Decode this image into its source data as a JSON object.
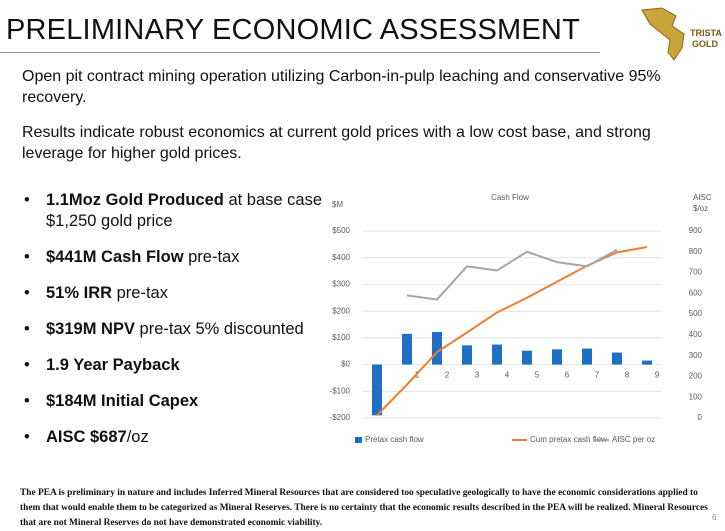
{
  "header": {
    "title": "PRELIMINARY ECONOMIC ASSESSMENT",
    "logo": [
      "TRISTAR",
      "GOLD"
    ]
  },
  "paragraphs": [
    "Open pit contract mining operation utilizing Carbon-in-pulp leaching and conservative 95% recovery.",
    "Results indicate robust economics at current gold prices with a low cost base, and strong leverage for higher gold prices."
  ],
  "bullets": [
    [
      {
        "bold": "1.1Moz Gold Produced"
      },
      {
        "text": " at base case $1,250 gold price"
      }
    ],
    [
      {
        "bold": "$441M Cash Flow"
      },
      {
        "text": " pre-tax"
      }
    ],
    [
      {
        "bold": "51% IRR"
      },
      {
        "text": " pre-tax"
      }
    ],
    [
      {
        "bold": "$319M NPV"
      },
      {
        "text": " pre-tax 5% discounted"
      }
    ],
    [
      {
        "bold": "1.9 Year Payback"
      }
    ],
    [
      {
        "bold": "$184M Initial Capex"
      }
    ],
    [
      {
        "bold": "AISC $687"
      },
      {
        "text": "/oz"
      }
    ]
  ],
  "chart_data": {
    "type": "bar",
    "title": "Cash Flow",
    "y_label": "$M",
    "y2_label": [
      "AISC",
      "$/oz"
    ],
    "categories": [
      null,
      "1",
      "2",
      "3",
      "4",
      "5",
      "6",
      "7",
      "8",
      "9"
    ],
    "series": [
      {
        "name": "Pretax cash flow",
        "type": "bar",
        "color": "#1f6fc5",
        "values": [
          -190,
          115,
          122,
          72,
          75,
          52,
          57,
          60,
          45,
          15
        ]
      },
      {
        "name": "Cum pretax cash flow",
        "type": "line",
        "color": "#ed7d31",
        "values": [
          -190,
          -75,
          47,
          120,
          195,
          250,
          310,
          370,
          420,
          440
        ]
      },
      {
        "name": "AISC per oz",
        "type": "line",
        "axis": "y2",
        "color": "#a5a5a5",
        "values": [
          null,
          590,
          570,
          730,
          710,
          800,
          750,
          730,
          810,
          null
        ]
      }
    ],
    "ylim": [
      -200,
      500
    ],
    "yticks": [
      {
        "value": 500,
        "label": "$500"
      },
      {
        "value": 400,
        "label": "$400"
      },
      {
        "value": 300,
        "label": "$300"
      },
      {
        "value": 200,
        "label": "$200"
      },
      {
        "value": 100,
        "label": "$100"
      },
      {
        "value": 0,
        "label": "$0"
      },
      {
        "value": -100,
        "label": "-$100"
      },
      {
        "value": -200,
        "label": "-$200"
      }
    ],
    "y2lim": [
      0,
      900
    ],
    "y2ticks": [
      900,
      800,
      700,
      600,
      500,
      400,
      300,
      200,
      100,
      0
    ],
    "grid": true
  },
  "footer": "The PEA is preliminary in nature and includes Inferred Mineral Resources that are considered too speculative geologically to have the economic considerations applied to them that would enable them to be categorized as Mineral Reserves. There is no certainty that the economic results described in the PEA will be realized. Mineral Resources that are not Mineral Reserves do not have demonstrated economic viability.",
  "page_number": "6"
}
